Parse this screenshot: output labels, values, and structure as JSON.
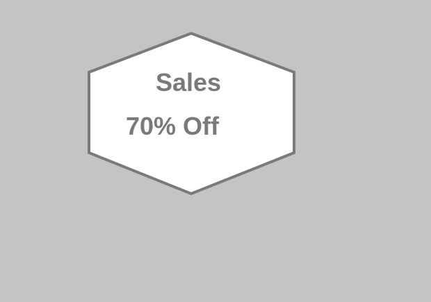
{
  "badge": {
    "title": "Sales",
    "offer": "70% Off",
    "fill_color": "#ffffff",
    "border_color": "#7a7a7a",
    "text_color": "#7a7a7a"
  },
  "background_color": "#c4c4c4"
}
